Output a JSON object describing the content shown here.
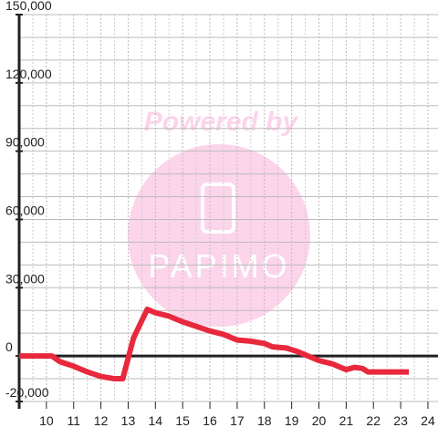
{
  "chart_data": {
    "type": "line",
    "watermark": "Powered by",
    "watermark_logo": "PAPIMO",
    "x": [
      9.0,
      10.2,
      10.5,
      11,
      11.5,
      12,
      12.5,
      12.8,
      13.2,
      13.7,
      14,
      14.5,
      15,
      15.5,
      16,
      16.5,
      17,
      17.5,
      18,
      18.3,
      18.8,
      19.2,
      19.5,
      20,
      20.5,
      21,
      21.3,
      21.6,
      21.8,
      22,
      23.3
    ],
    "series": [
      {
        "color": "#e8283c",
        "values": [
          0,
          0,
          -2500,
          -4500,
          -7000,
          -9000,
          -10000,
          -10000,
          8000,
          20500,
          19000,
          17500,
          15000,
          13000,
          11000,
          9500,
          7000,
          6500,
          5500,
          4000,
          3500,
          2000,
          500,
          -2000,
          -3500,
          -6000,
          -5000,
          -5500,
          -7000,
          -7000,
          -7000
        ]
      }
    ],
    "xlim": [
      9,
      24.37
    ],
    "xticks": [
      10,
      11,
      12,
      13,
      14,
      15,
      16,
      17,
      18,
      19,
      20,
      21,
      22,
      23,
      24
    ],
    "xminorticks": [
      9.5,
      10.5,
      11.5,
      12.5,
      13.5,
      14.5,
      15.5,
      16.5,
      17.5,
      18.5,
      19.5,
      20.5,
      21.5,
      22.5,
      23.5
    ],
    "ylim": [
      -20000,
      150000
    ],
    "yticks": [
      {
        "value": -20000,
        "label": "-20,000"
      },
      0,
      {
        "value": 30000,
        "label": "30,000"
      },
      {
        "value": 60000,
        "label": "60,000"
      },
      {
        "value": 90000,
        "label": "90,000"
      },
      {
        "value": 120000,
        "label": "120,000"
      },
      {
        "value": 150000,
        "label": "150,000"
      }
    ],
    "yminorticks": [
      -10000,
      10000,
      20000,
      40000,
      50000,
      70000,
      80000,
      100000,
      110000,
      130000,
      140000
    ],
    "grid": true
  }
}
